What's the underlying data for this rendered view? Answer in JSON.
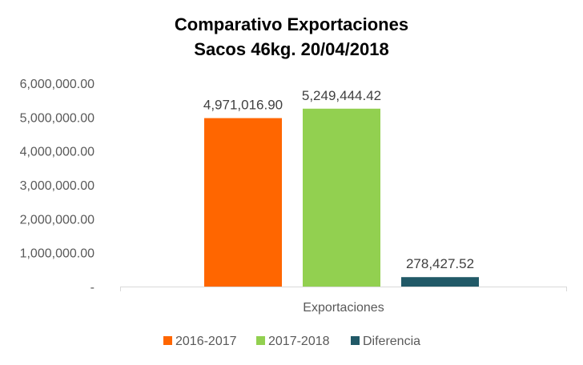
{
  "chart_data": {
    "type": "bar",
    "title": [
      "Comparativo Exportaciones",
      "Sacos 46kg. 20/04/2018"
    ],
    "categories": [
      "Exportaciones"
    ],
    "series": [
      {
        "name": "2016-2017",
        "values": [
          4971016.9
        ],
        "label": "4,971,016.90",
        "color": "#FF6600"
      },
      {
        "name": "2017-2018",
        "values": [
          5249444.42
        ],
        "label": "5,249,444.42",
        "color": "#92D050"
      },
      {
        "name": "Diferencia",
        "values": [
          278427.52
        ],
        "label": "278,427.52",
        "color": "#215967"
      }
    ],
    "ylim": [
      0,
      6000000
    ],
    "yticks": [
      {
        "value": 0,
        "label": "-"
      },
      {
        "value": 1000000,
        "label": "1,000,000.00"
      },
      {
        "value": 2000000,
        "label": "2,000,000.00"
      },
      {
        "value": 3000000,
        "label": "3,000,000.00"
      },
      {
        "value": 4000000,
        "label": "4,000,000.00"
      },
      {
        "value": 5000000,
        "label": "5,000,000.00"
      },
      {
        "value": 6000000,
        "label": "6,000,000.00"
      }
    ],
    "grid": false,
    "legend_position": "bottom"
  }
}
